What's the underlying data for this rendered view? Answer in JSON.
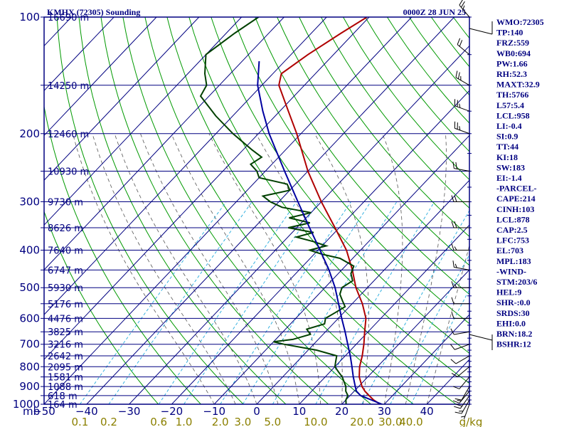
{
  "header": {
    "station": "KMHX (72305) Sounding",
    "time": "0000Z 28 JUN 25"
  },
  "chart_data": {
    "type": "line",
    "title": "KMHX (72305) Sounding",
    "subtitle": "0000Z 28 JUN 25",
    "y_scale": "log-pressure (skew-T)",
    "ylim": [
      1000,
      100
    ],
    "xlim": [
      -50,
      50
    ],
    "pressure_ticks": [
      100,
      200,
      300,
      400,
      500,
      600,
      700,
      800,
      900,
      1000
    ],
    "pressure_tick_labels": [
      "100",
      "200",
      "300",
      "400",
      "500",
      "600",
      "700",
      "800",
      "900",
      "1000"
    ],
    "temperature_ticks": [
      -50,
      -40,
      -30,
      -20,
      -10,
      0,
      10,
      20,
      30,
      40
    ],
    "temperature_tick_labels": [
      "−50",
      "−40",
      "−30",
      "−20",
      "−10",
      "0",
      "10",
      "20",
      "30",
      "40"
    ],
    "x_axis_prefix": "mb",
    "mixing_ratio_ticks": [
      "0.1",
      "0.2",
      "0.6",
      "1.0",
      "2.0",
      "3.0",
      "5.0",
      "10.0",
      "20.0",
      "30.0",
      "40.0"
    ],
    "mixing_ratio_unit": "g/kg",
    "mixing_ratio_values": [
      0.1,
      0.2,
      0.6,
      1.0,
      2.0,
      3.0,
      5.0,
      10.0,
      20.0,
      30.0,
      40.0
    ],
    "height_labels": [
      {
        "p": 100,
        "text": "16690 m"
      },
      {
        "p": 150,
        "text": "14250 m"
      },
      {
        "p": 200,
        "text": "12460 m"
      },
      {
        "p": 250,
        "text": "10930 m"
      },
      {
        "p": 300,
        "text": "9730 m"
      },
      {
        "p": 350,
        "text": "8626 m"
      },
      {
        "p": 400,
        "text": "7640 m"
      },
      {
        "p": 450,
        "text": "6747 m"
      },
      {
        "p": 500,
        "text": "5930 m"
      },
      {
        "p": 550,
        "text": "5176 m"
      },
      {
        "p": 600,
        "text": "4476 m"
      },
      {
        "p": 650,
        "text": "3825 m"
      },
      {
        "p": 700,
        "text": "3216 m"
      },
      {
        "p": 750,
        "text": "2642 m"
      },
      {
        "p": 800,
        "text": "2095 m"
      },
      {
        "p": 850,
        "text": "1581 m"
      },
      {
        "p": 900,
        "text": "1088 m"
      },
      {
        "p": 950,
        "text": "618 m"
      },
      {
        "p": 1000,
        "text": "164 m"
      }
    ],
    "series": [
      {
        "key": "temperature",
        "color": "#b00000",
        "points": [
          [
            1006,
            30.2
          ],
          [
            1000,
            29.0
          ],
          [
            975,
            26.5
          ],
          [
            950,
            24.5
          ],
          [
            925,
            22.5
          ],
          [
            900,
            20.8
          ],
          [
            850,
            18.0
          ],
          [
            800,
            15.8
          ],
          [
            750,
            14.0
          ],
          [
            700,
            11.8
          ],
          [
            650,
            9.2
          ],
          [
            600,
            6.5
          ],
          [
            550,
            2.4
          ],
          [
            500,
            -2.7
          ],
          [
            450,
            -7.5
          ],
          [
            400,
            -13.3
          ],
          [
            350,
            -21.0
          ],
          [
            300,
            -30.0
          ],
          [
            250,
            -40.0
          ],
          [
            200,
            -51.0
          ],
          [
            175,
            -58.0
          ],
          [
            150,
            -66.0
          ],
          [
            140,
            -68.0
          ],
          [
            125,
            -66.0
          ],
          [
            110,
            -63.0
          ],
          [
            100,
            -60.5
          ]
        ]
      },
      {
        "key": "dewpoint",
        "color": "#004000",
        "points": [
          [
            1006,
            22.0
          ],
          [
            1000,
            21.0
          ],
          [
            975,
            20.0
          ],
          [
            950,
            19.5
          ],
          [
            925,
            18.0
          ],
          [
            900,
            17.0
          ],
          [
            875,
            15.5
          ],
          [
            850,
            14.0
          ],
          [
            825,
            12.0
          ],
          [
            800,
            10.0
          ],
          [
            775,
            9.0
          ],
          [
            750,
            8.0
          ],
          [
            725,
            2.0
          ],
          [
            700,
            -7.0
          ],
          [
            690,
            -10.0
          ],
          [
            680,
            -6.0
          ],
          [
            660,
            -3.0
          ],
          [
            640,
            -5.0
          ],
          [
            620,
            -2.0
          ],
          [
            600,
            -3.0
          ],
          [
            580,
            -2.0
          ],
          [
            560,
            -1.0
          ],
          [
            540,
            -3.0
          ],
          [
            520,
            -5.0
          ],
          [
            500,
            -6.0
          ],
          [
            480,
            -5.0
          ],
          [
            460,
            -7.0
          ],
          [
            440,
            -8.0
          ],
          [
            420,
            -13.0
          ],
          [
            410,
            -18.0
          ],
          [
            400,
            -22.0
          ],
          [
            390,
            -19.0
          ],
          [
            380,
            -23.0
          ],
          [
            370,
            -28.0
          ],
          [
            360,
            -25.0
          ],
          [
            350,
            -32.0
          ],
          [
            340,
            -28.0
          ],
          [
            330,
            -34.0
          ],
          [
            320,
            -30.0
          ],
          [
            310,
            -38.0
          ],
          [
            300,
            -42.0
          ],
          [
            290,
            -45.0
          ],
          [
            280,
            -40.0
          ],
          [
            270,
            -42.0
          ],
          [
            260,
            -50.0
          ],
          [
            250,
            -52.0
          ],
          [
            240,
            -55.0
          ],
          [
            230,
            -54.0
          ],
          [
            220,
            -58.0
          ],
          [
            200,
            -66.0
          ],
          [
            180,
            -74.0
          ],
          [
            160,
            -82.0
          ],
          [
            150,
            -83.0
          ],
          [
            140,
            -86.0
          ],
          [
            125,
            -90.0
          ],
          [
            110,
            -88.0
          ],
          [
            100,
            -86.0
          ]
        ]
      },
      {
        "key": "parcel",
        "color": "#0000a0",
        "points": [
          [
            1006,
            30.2
          ],
          [
            975,
            26.0
          ],
          [
            950,
            22.5
          ],
          [
            925,
            20.5
          ],
          [
            900,
            19.2
          ],
          [
            850,
            16.6
          ],
          [
            800,
            14.0
          ],
          [
            750,
            11.2
          ],
          [
            700,
            8.0
          ],
          [
            650,
            4.6
          ],
          [
            600,
            0.8
          ],
          [
            550,
            -3.2
          ],
          [
            500,
            -7.6
          ],
          [
            450,
            -13.0
          ],
          [
            400,
            -19.5
          ],
          [
            350,
            -27.0
          ],
          [
            300,
            -35.5
          ],
          [
            250,
            -45.5
          ],
          [
            200,
            -57.5
          ],
          [
            175,
            -64.0
          ],
          [
            150,
            -71.0
          ],
          [
            130,
            -76.0
          ]
        ]
      }
    ],
    "wind_barbs": [
      {
        "p": 1000,
        "dir": 200,
        "spd": 5
      },
      {
        "p": 975,
        "dir": 210,
        "spd": 15
      },
      {
        "p": 950,
        "dir": 215,
        "spd": 20
      },
      {
        "p": 925,
        "dir": 220,
        "spd": 15
      },
      {
        "p": 900,
        "dir": 210,
        "spd": 10
      },
      {
        "p": 850,
        "dir": 220,
        "spd": 10
      },
      {
        "p": 800,
        "dir": 230,
        "spd": 10
      },
      {
        "p": 750,
        "dir": 240,
        "spd": 10
      },
      {
        "p": 700,
        "dir": 250,
        "spd": 10
      },
      {
        "p": 650,
        "dir": 260,
        "spd": 10
      },
      {
        "p": 600,
        "dir": 270,
        "spd": 10
      },
      {
        "p": 550,
        "dir": 270,
        "spd": 10
      },
      {
        "p": 500,
        "dir": 270,
        "spd": 15
      },
      {
        "p": 450,
        "dir": 280,
        "spd": 15
      },
      {
        "p": 400,
        "dir": 270,
        "spd": 15
      },
      {
        "p": 350,
        "dir": 270,
        "spd": 20
      },
      {
        "p": 300,
        "dir": 270,
        "spd": 20
      },
      {
        "p": 250,
        "dir": 280,
        "spd": 20
      },
      {
        "p": 200,
        "dir": 290,
        "spd": 25
      },
      {
        "p": 175,
        "dir": 290,
        "spd": 25
      },
      {
        "p": 150,
        "dir": 300,
        "spd": 25
      },
      {
        "p": 125,
        "dir": 310,
        "spd": 20
      },
      {
        "p": 100,
        "dir": 320,
        "spd": 25
      }
    ]
  },
  "indices": [
    "WMO:72305",
    "TP:140",
    "FRZ:559",
    "WB0:694",
    "PW:1.66",
    "RH:52.3",
    "MAXT:32.9",
    "TH:5766",
    "L57:5.4",
    "LCL:958",
    "LI:-0.4",
    "SI:0.9",
    "TT:44",
    "KI:18",
    "SW:183",
    "EI:-1.4",
    "-PARCEL-",
    "CAPE:214",
    "CINH:103",
    "LCL:878",
    "CAP:2.5",
    "LFC:753",
    "EL:703",
    "MPL:183",
    "-WIND-",
    "STM:203/6",
    "HEL:9",
    "SHR-:0.0",
    "SRDS:30",
    "EHI:0.0",
    "BRN:18.2",
    "BSHR:12"
  ],
  "colors": {
    "frame": "#000080",
    "isobar": "#000080",
    "isotherm": "#000080",
    "dry_adiabat": "#009900",
    "moist_adiabat": "#555555",
    "mixing_ratio": "#22aadd",
    "temperature": "#b00000",
    "dewpoint": "#004000",
    "parcel": "#0000a0",
    "mixing_ratio_label": "#8b8000"
  }
}
